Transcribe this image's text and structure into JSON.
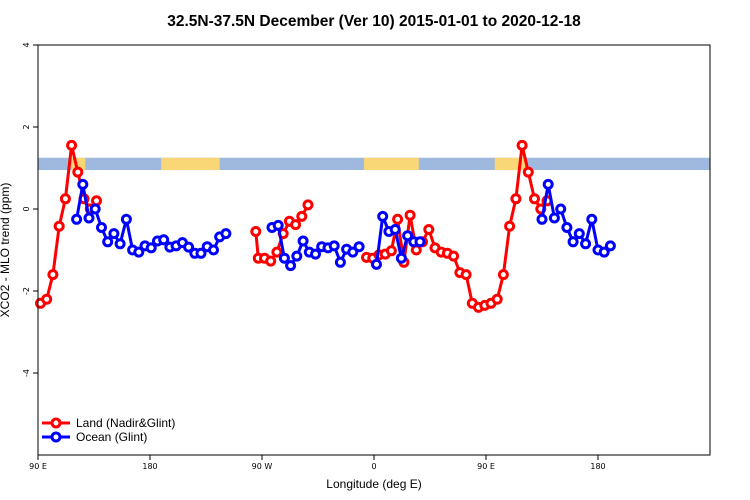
{
  "chart_data": {
    "type": "line",
    "title": "32.5N-37.5N December (Ver 10)   2015-01-01 to 2020-12-18",
    "xlabel": "Longitude (deg E)",
    "ylabel": "XCO2 - MLO trend (ppm)",
    "xlim": [
      -90,
      180
    ],
    "ylim": [
      -6,
      4
    ],
    "x_ticks": [
      {
        "value": -90,
        "label": "90 E"
      },
      {
        "value": -45,
        "label": "180"
      },
      {
        "value": 0,
        "label": "90 W"
      },
      {
        "value": 45,
        "label": "0"
      },
      {
        "value": 90,
        "label": "90 E"
      },
      {
        "value": 135,
        "label": "180"
      }
    ],
    "y_ticks": [
      {
        "value": 4,
        "label": "4"
      },
      {
        "value": 2,
        "label": "2"
      },
      {
        "value": 0,
        "label": "0"
      },
      {
        "value": -2,
        "label": "-2"
      },
      {
        "value": -4,
        "label": "-4"
      }
    ],
    "band": {
      "y_range": [
        0.95,
        1.25
      ],
      "land_color": "#F9D776",
      "ocean_color": "#9FB8DE",
      "land_segments": [
        [
          -76.5,
          -71
        ],
        [
          -40.5,
          -17
        ],
        [
          41,
          63
        ],
        [
          93.5,
          106
        ]
      ]
    },
    "legend": {
      "position": "bottom-left"
    },
    "series": [
      {
        "name": "Land (Nadir&Glint)",
        "color": "#FF0000",
        "segments": [
          [
            [
              -89,
              -2.3
            ],
            [
              -86.5,
              -2.2
            ],
            [
              -84,
              -1.6
            ],
            [
              -81.5,
              -0.42
            ],
            [
              -79,
              0.25
            ],
            [
              -76.5,
              1.55
            ],
            [
              -74,
              0.9
            ],
            [
              -71.5,
              0.25
            ],
            [
              -69,
              0.0
            ],
            [
              -66.5,
              0.2
            ]
          ],
          [
            [
              -2.5,
              -0.55
            ],
            [
              -1.5,
              -1.2
            ],
            [
              1,
              -1.2
            ],
            [
              3.5,
              -1.27
            ],
            [
              6,
              -1.05
            ],
            [
              8.5,
              -0.6
            ],
            [
              11,
              -0.3
            ],
            [
              13.5,
              -0.38
            ],
            [
              16,
              -0.18
            ],
            [
              18.5,
              0.1
            ]
          ],
          [
            [
              42,
              -1.18
            ],
            [
              44.5,
              -1.2
            ],
            [
              47,
              -1.12
            ],
            [
              49.5,
              -1.1
            ],
            [
              52,
              -1.02
            ],
            [
              54.5,
              -0.25
            ],
            [
              57,
              -1.3
            ],
            [
              59.5,
              -0.15
            ],
            [
              62,
              -1.0
            ],
            [
              64.5,
              -0.8
            ],
            [
              67,
              -0.5
            ],
            [
              69.5,
              -0.95
            ],
            [
              72,
              -1.05
            ],
            [
              74.5,
              -1.08
            ],
            [
              77,
              -1.15
            ],
            [
              79.5,
              -1.55
            ],
            [
              82,
              -1.6
            ],
            [
              84.5,
              -2.3
            ],
            [
              87,
              -2.4
            ],
            [
              89.5,
              -2.35
            ],
            [
              92,
              -2.3
            ],
            [
              94.5,
              -2.2
            ],
            [
              97,
              -1.6
            ],
            [
              99.5,
              -0.42
            ],
            [
              102,
              0.25
            ],
            [
              104.5,
              1.55
            ],
            [
              107,
              0.9
            ],
            [
              109.5,
              0.25
            ],
            [
              112,
              0.0
            ],
            [
              114.5,
              0.2
            ]
          ]
        ]
      },
      {
        "name": "Ocean (Glint)",
        "color": "#0000FF",
        "segments": [
          [
            [
              -74.5,
              -0.25
            ],
            [
              -72,
              0.6
            ],
            [
              -69.5,
              -0.22
            ],
            [
              -67,
              0.0
            ],
            [
              -64.5,
              -0.45
            ],
            [
              -62,
              -0.8
            ],
            [
              -59.5,
              -0.6
            ],
            [
              -57,
              -0.85
            ],
            [
              -54.5,
              -0.25
            ],
            [
              -52,
              -1.0
            ],
            [
              -49.5,
              -1.05
            ],
            [
              -47,
              -0.9
            ],
            [
              -44.5,
              -0.95
            ],
            [
              -42,
              -0.78
            ],
            [
              -39.5,
              -0.75
            ],
            [
              -37,
              -0.93
            ],
            [
              -34.5,
              -0.9
            ],
            [
              -32,
              -0.82
            ],
            [
              -29.5,
              -0.93
            ],
            [
              -27,
              -1.08
            ],
            [
              -24.5,
              -1.08
            ],
            [
              -22,
              -0.92
            ],
            [
              -19.5,
              -1.0
            ],
            [
              -17,
              -0.68
            ],
            [
              -14.5,
              -0.6
            ]
          ],
          [
            [
              4,
              -0.45
            ],
            [
              6.5,
              -0.4
            ],
            [
              9,
              -1.2
            ],
            [
              11.5,
              -1.38
            ],
            [
              14,
              -1.15
            ],
            [
              16.5,
              -0.78
            ],
            [
              19,
              -1.05
            ],
            [
              21.5,
              -1.1
            ],
            [
              24,
              -0.92
            ],
            [
              26.5,
              -0.95
            ],
            [
              29,
              -0.9
            ],
            [
              31.5,
              -1.3
            ],
            [
              34,
              -0.98
            ],
            [
              36.5,
              -1.05
            ],
            [
              39,
              -0.92
            ]
          ],
          [
            [
              46,
              -1.35
            ],
            [
              48.5,
              -0.18
            ],
            [
              51,
              -0.55
            ],
            [
              53.5,
              -0.5
            ],
            [
              56,
              -1.2
            ],
            [
              58.5,
              -0.65
            ],
            [
              61,
              -0.8
            ],
            [
              63.5,
              -0.8
            ]
          ],
          [
            [
              112.5,
              -0.25
            ],
            [
              115,
              0.6
            ],
            [
              117.5,
              -0.22
            ],
            [
              120,
              0.0
            ],
            [
              122.5,
              -0.45
            ],
            [
              125,
              -0.8
            ],
            [
              127.5,
              -0.6
            ],
            [
              130,
              -0.85
            ],
            [
              132.5,
              -0.25
            ],
            [
              135,
              -1.0
            ],
            [
              137.5,
              -1.05
            ],
            [
              140,
              -0.9
            ]
          ]
        ]
      }
    ]
  }
}
